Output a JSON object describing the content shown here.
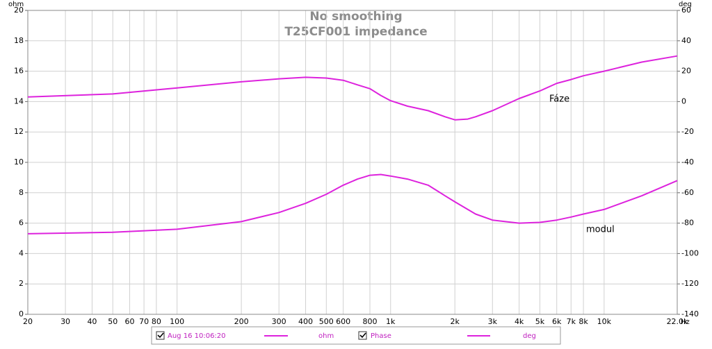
{
  "chart_data": {
    "type": "line",
    "title": "No smoothing",
    "subtitle": "T25CF001 impedance",
    "xlabel": "Hz",
    "ylabel": "ohm",
    "y2label": "deg",
    "log_x": true,
    "grid": true,
    "x": [
      20,
      50,
      100,
      200,
      300,
      400,
      500,
      600,
      700,
      800,
      900,
      1000,
      1200,
      1500,
      1800,
      2000,
      2300,
      2500,
      3000,
      4000,
      5000,
      6000,
      7000,
      8000,
      10000,
      15000,
      22000
    ],
    "series": [
      {
        "name": "Aug 16 10:06:20",
        "color": "#dd22dd",
        "axis": "y",
        "values": [
          5.3,
          5.4,
          5.6,
          6.1,
          6.7,
          7.3,
          7.9,
          8.5,
          8.9,
          9.15,
          9.2,
          9.1,
          8.9,
          8.5,
          7.8,
          7.4,
          6.9,
          6.6,
          6.2,
          6.0,
          6.05,
          6.2,
          6.4,
          6.6,
          6.9,
          7.8,
          8.8
        ]
      },
      {
        "name": "Phase",
        "color": "#dd22dd",
        "axis": "y2",
        "values": [
          3,
          5,
          9,
          13,
          15,
          16,
          15.5,
          14,
          11,
          8.5,
          4,
          0.6,
          -3,
          -6,
          -10,
          -12,
          -11.5,
          -10,
          -6,
          2,
          7,
          12,
          14.5,
          17,
          20,
          26,
          30
        ]
      }
    ],
    "annotations": [
      "Fáze",
      "modul"
    ],
    "xlim": [
      20,
      22000
    ],
    "xticks": [
      20,
      30,
      40,
      50,
      60,
      70,
      80,
      100,
      200,
      300,
      400,
      500,
      600,
      800,
      {
        "value": 1000,
        "label": "1k"
      },
      {
        "value": 2000,
        "label": "2k"
      },
      {
        "value": 3000,
        "label": "3k"
      },
      {
        "value": 4000,
        "label": "4k"
      },
      {
        "value": 5000,
        "label": "5k"
      },
      {
        "value": 6000,
        "label": "6k"
      },
      {
        "value": 7000,
        "label": "7k"
      },
      {
        "value": 8000,
        "label": "8k"
      },
      {
        "value": 10000,
        "label": "10k"
      },
      {
        "value": 22000,
        "label": "22.0k"
      }
    ],
    "ylim": [
      0,
      20
    ],
    "yticks": [
      0,
      2,
      4,
      6,
      8,
      10,
      12,
      14,
      16,
      18,
      20
    ],
    "y2lim": [
      -140,
      60
    ],
    "y2ticks": [
      -140,
      -120,
      -100,
      -80,
      -60,
      -40,
      -20,
      0,
      20,
      40,
      60
    ]
  }
}
